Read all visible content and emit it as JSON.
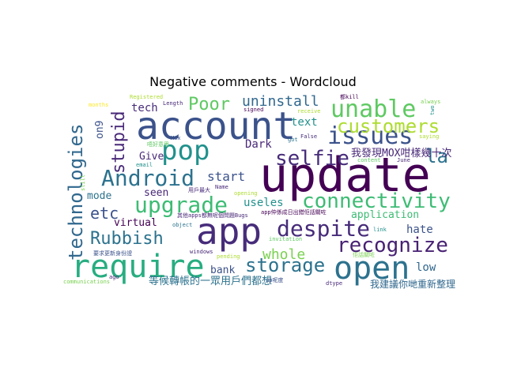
{
  "chart_data": {
    "type": "wordcloud",
    "title": "Negative comments - Wordcloud",
    "words": [
      {
        "text": "update",
        "weight": 100,
        "color": "#440154"
      },
      {
        "text": "account",
        "weight": 78,
        "color": "#3b528b"
      },
      {
        "text": "app",
        "weight": 72,
        "color": "#472c7a"
      },
      {
        "text": "require",
        "weight": 66,
        "color": "#27ad81"
      },
      {
        "text": "open",
        "weight": 64,
        "color": "#2c728e"
      },
      {
        "text": "pop",
        "weight": 54,
        "color": "#21918c"
      },
      {
        "text": "issues",
        "weight": 48,
        "color": "#3b528b"
      },
      {
        "text": "unable",
        "weight": 46,
        "color": "#5ec962"
      },
      {
        "text": "Android",
        "weight": 44,
        "color": "#2c728e"
      },
      {
        "text": "upgrade",
        "weight": 43,
        "color": "#3dbc74"
      },
      {
        "text": "despite",
        "weight": 42,
        "color": "#472c7a"
      },
      {
        "text": "selfie",
        "weight": 41,
        "color": "#472c7a"
      },
      {
        "text": "connectivity",
        "weight": 40,
        "color": "#3dbc74"
      },
      {
        "text": "recognize",
        "weight": 40,
        "color": "#482173"
      },
      {
        "text": "technologies",
        "weight": 40,
        "color": "#31688e"
      },
      {
        "text": "storage",
        "weight": 38,
        "color": "#2c728e"
      },
      {
        "text": "la",
        "weight": 38,
        "color": "#2c728e"
      },
      {
        "text": "customers",
        "weight": 36,
        "color": "#addc30"
      },
      {
        "text": "stupid",
        "weight": 34,
        "color": "#482878"
      },
      {
        "text": "Rubbish",
        "weight": 34,
        "color": "#2c728e"
      },
      {
        "text": "Poor",
        "weight": 33,
        "color": "#5ec962"
      },
      {
        "text": "etc",
        "weight": 30,
        "color": "#3b528b"
      },
      {
        "text": "uninstall",
        "weight": 30,
        "color": "#31688e"
      },
      {
        "text": "whole",
        "weight": 28,
        "color": "#7ad151"
      },
      {
        "text": "start",
        "weight": 27,
        "color": "#3b528b"
      },
      {
        "text": "tech",
        "weight": 22,
        "color": "#472c7a"
      },
      {
        "text": "text",
        "weight": 22,
        "color": "#21918c"
      },
      {
        "text": "hate",
        "weight": 22,
        "color": "#3b528b"
      },
      {
        "text": "low",
        "weight": 22,
        "color": "#31688e"
      },
      {
        "text": "Dark",
        "weight": 21,
        "color": "#482878"
      },
      {
        "text": "useles",
        "weight": 21,
        "color": "#21918c"
      },
      {
        "text": "virtual",
        "weight": 21,
        "color": "#440154"
      },
      {
        "text": "application",
        "weight": 21,
        "color": "#3dbc74"
      },
      {
        "text": "bank",
        "weight": 20,
        "color": "#3b528b"
      },
      {
        "text": "Give",
        "weight": 19,
        "color": "#482878"
      },
      {
        "text": "seen",
        "weight": 19,
        "color": "#482878"
      },
      {
        "text": "mode",
        "weight": 19,
        "color": "#2c728e"
      },
      {
        "text": "on9",
        "weight": 19,
        "color": "#3b528b"
      },
      {
        "text": "我發現MOX咁樣幾十次",
        "weight": 18,
        "color": "#482878"
      },
      {
        "text": "等候轉帳的一眾用戶們都想",
        "weight": 18,
        "color": "#2c728e"
      },
      {
        "text": "我建議你哋重新整理成個UX既設計",
        "weight": 16,
        "color": "#31688e"
      },
      {
        "text": "months",
        "weight": 10,
        "color": "#fde725"
      },
      {
        "text": "Registered",
        "weight": 10,
        "color": "#addc30"
      },
      {
        "text": "Length",
        "weight": 10,
        "color": "#482878"
      },
      {
        "text": "signed",
        "weight": 10,
        "color": "#440154"
      },
      {
        "text": "都kill",
        "weight": 10,
        "color": "#440154"
      },
      {
        "text": "always",
        "weight": 10,
        "color": "#7ad151"
      },
      {
        "text": "saying",
        "weight": 10,
        "color": "#addc30"
      },
      {
        "text": "two",
        "weight": 10,
        "color": "#21918c"
      },
      {
        "text": "Mox",
        "weight": 10,
        "color": "#3b528b"
      },
      {
        "text": "got",
        "weight": 10,
        "color": "#2c728e"
      },
      {
        "text": "False",
        "weight": 10,
        "color": "#472c7a"
      },
      {
        "text": "receive",
        "weight": 10,
        "color": "#addc30"
      },
      {
        "text": "content",
        "weight": 10,
        "color": "#5ec962"
      },
      {
        "text": "June",
        "weight": 10,
        "color": "#482878"
      },
      {
        "text": "email",
        "weight": 10,
        "color": "#21918c"
      },
      {
        "text": "still",
        "weight": 10,
        "color": "#7ad151"
      },
      {
        "text": "唔好意思",
        "weight": 10,
        "color": "#5ec962"
      },
      {
        "text": "用戶最大",
        "weight": 10,
        "color": "#482878"
      },
      {
        "text": "Name",
        "weight": 10,
        "color": "#482878"
      },
      {
        "text": "opening",
        "weight": 10,
        "color": "#addc30"
      },
      {
        "text": "其他apps都無呢個問題Bugs",
        "weight": 10,
        "color": "#482878"
      },
      {
        "text": "app仲係成日出錯佢話關咗",
        "weight": 10,
        "color": "#440154"
      },
      {
        "text": "object",
        "weight": 10,
        "color": "#2c728e"
      },
      {
        "text": "link",
        "weight": 10,
        "color": "#21918c"
      },
      {
        "text": "invitation",
        "weight": 10,
        "color": "#5ec962"
      },
      {
        "text": "windows",
        "weight": 10,
        "color": "#482878"
      },
      {
        "text": "pending",
        "weight": 10,
        "color": "#addc30"
      },
      {
        "text": "要求更新身份證",
        "weight": 10,
        "color": "#3b528b"
      },
      {
        "text": "佢話關咗",
        "weight": 10,
        "color": "#7ad151"
      },
      {
        "text": "communications",
        "weight": 10,
        "color": "#7ad151"
      },
      {
        "text": "ago",
        "weight": 10,
        "color": "#482878"
      },
      {
        "text": "up呢度",
        "weight": 10,
        "color": "#3b528b"
      },
      {
        "text": "dtype",
        "weight": 10,
        "color": "#482878"
      }
    ]
  }
}
